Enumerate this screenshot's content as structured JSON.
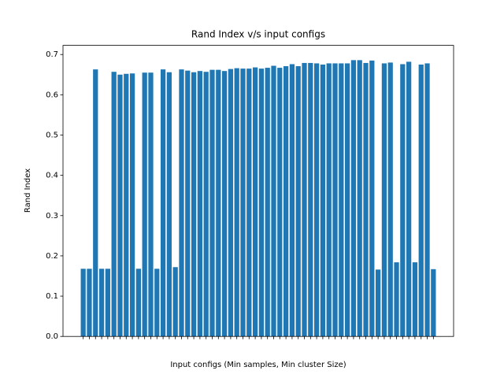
{
  "chart_data": {
    "type": "bar",
    "title": "Rand Index v/s input configs",
    "x_label": "Input configs (Min samples, Min cluster Size)",
    "y_label": "Rand Index",
    "categories": [
      null,
      null,
      null,
      null,
      null,
      null,
      null,
      null,
      null,
      null,
      null,
      null,
      null,
      null,
      null,
      null,
      null,
      null,
      null,
      null,
      null,
      null,
      null,
      null,
      null,
      null,
      null,
      null,
      null,
      null,
      null,
      null,
      null,
      null,
      null,
      null,
      null,
      null,
      null,
      null,
      null,
      null,
      null,
      null,
      null,
      null,
      null,
      null,
      null,
      null,
      null,
      null,
      null,
      null,
      null,
      null,
      null,
      null
    ],
    "values": [
      0.168,
      0.168,
      0.663,
      0.168,
      0.168,
      0.657,
      0.65,
      0.652,
      0.653,
      0.168,
      0.655,
      0.655,
      0.168,
      0.663,
      0.656,
      0.172,
      0.663,
      0.66,
      0.656,
      0.659,
      0.657,
      0.662,
      0.662,
      0.659,
      0.664,
      0.666,
      0.665,
      0.665,
      0.668,
      0.665,
      0.667,
      0.672,
      0.667,
      0.671,
      0.676,
      0.671,
      0.679,
      0.679,
      0.678,
      0.675,
      0.678,
      0.678,
      0.678,
      0.678,
      0.686,
      0.686,
      0.679,
      0.685,
      0.166,
      0.678,
      0.68,
      0.184,
      0.676,
      0.682,
      0.184,
      0.675,
      0.678,
      0.167
    ],
    "color": "#1f77b4",
    "ylim": [
      0,
      0.7227
    ],
    "yticks": [
      {
        "value": 0,
        "label": "0.0"
      },
      0.1,
      0.2,
      0.3,
      0.4,
      0.5,
      0.6,
      0.7
    ]
  }
}
